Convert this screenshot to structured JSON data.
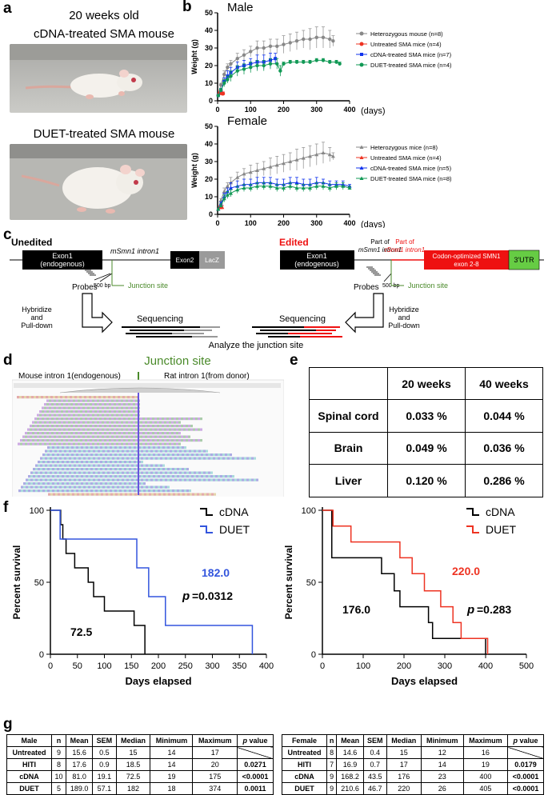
{
  "panel_letters": [
    "a",
    "b",
    "c",
    "d",
    "e",
    "f",
    "g"
  ],
  "panel_a": {
    "header": "20 weeks old",
    "photo1_caption": "cDNA-treated SMA mouse",
    "photo2_caption": "DUET-treated SMA mouse"
  },
  "axis_units": {
    "days": "(days)"
  },
  "panel_c": {
    "unedited_label": "Unedited",
    "edited_label": "Edited",
    "exon1": "Exon1",
    "endogenous": "(endogenous)",
    "mouse_intron": "mSmn1 intron1",
    "exon2": "Exon2",
    "lacz": "LacZ",
    "probes": "Probes",
    "bp500": "500 bp",
    "junction_site": "Junction site",
    "hybridize1": "Hybridize",
    "hybridize2": "and",
    "hybridize3": "Pull-down",
    "sequencing": "Sequencing",
    "analyze": "Analyze the junction site",
    "part_of": "Part of",
    "mouse_intron_part": "mSmn1 intron1",
    "rat_intron_part": "rSmn1 intron1",
    "codon_opt1": "Codon-optimized SMN1",
    "codon_opt2": "exon 2-8",
    "utr": "3'UTR"
  },
  "panel_d": {
    "junction_title": "Junction site",
    "mouse_label": "Mouse intron 1(endogenous)",
    "rat_label": "Rat intron 1(from donor)"
  },
  "panel_e": {
    "headers": [
      "",
      "20 weeks",
      "40 weeks"
    ],
    "rows": [
      [
        "Spinal cord",
        "0.033 %",
        "0.044 %"
      ],
      [
        "Brain",
        "0.049 %",
        "0.036 %"
      ],
      [
        "Liver",
        "0.120 %",
        "0.286 %"
      ]
    ]
  },
  "panel_g": {
    "male": {
      "headers": [
        "Male",
        "n",
        "Mean",
        "SEM",
        "Median",
        "Minimum",
        "Maximum",
        "p value"
      ],
      "rows": [
        [
          "Untreated",
          "9",
          "15.6",
          "0.5",
          "15",
          "14",
          "17",
          ""
        ],
        [
          "HITI",
          "8",
          "17.6",
          "0.9",
          "18.5",
          "14",
          "20",
          "0.0271"
        ],
        [
          "cDNA",
          "10",
          "81.0",
          "19.1",
          "72.5",
          "19",
          "175",
          "<0.0001"
        ],
        [
          "DUET",
          "5",
          "189.0",
          "57.1",
          "182",
          "18",
          "374",
          "0.0011"
        ]
      ]
    },
    "female": {
      "headers": [
        "Female",
        "n",
        "Mean",
        "SEM",
        "Median",
        "Minimum",
        "Maximum",
        "p value"
      ],
      "rows": [
        [
          "Untreated",
          "8",
          "14.6",
          "0.4",
          "15",
          "12",
          "16",
          ""
        ],
        [
          "HITI",
          "7",
          "16.9",
          "0.7",
          "17",
          "14",
          "19",
          "0.0179"
        ],
        [
          "cDNA",
          "9",
          "168.2",
          "43.5",
          "176",
          "23",
          "400",
          "<0.0001"
        ],
        [
          "DUET",
          "9",
          "210.6",
          "46.7",
          "220",
          "26",
          "405",
          "<0.0001"
        ]
      ]
    }
  },
  "colors": {
    "het": "#888888",
    "untreated": "#ee3322",
    "cdna": "#1133ee",
    "duet": "#119955",
    "surv_blue": "#3355dd",
    "surv_red": "#ee3322",
    "edited_red": "#ee1111",
    "green_ann": "#4a8a2a",
    "exon_red": "#ee1111",
    "utr_green": "#66cc44"
  },
  "chart_data": [
    {
      "type": "line",
      "title": "Male",
      "xlabel": "(days)",
      "ylabel": "Weight (g)",
      "xlim": [
        0,
        400
      ],
      "ylim": [
        0,
        50
      ],
      "xticks": [
        0,
        100,
        200,
        300,
        400
      ],
      "yticks": [
        0,
        10,
        20,
        30,
        40,
        50
      ],
      "legend_position": "right",
      "series": [
        {
          "name": "Heterozygous mouse (n=8)",
          "color_key": "het",
          "marker": "circle",
          "x": [
            2,
            10,
            20,
            30,
            40,
            60,
            80,
            100,
            120,
            140,
            160,
            180,
            200,
            220,
            240,
            260,
            280,
            300,
            320,
            340,
            350
          ],
          "y": [
            3,
            9,
            15,
            19,
            21,
            24,
            26,
            28,
            30,
            30,
            31,
            31,
            32,
            33,
            34,
            35,
            35,
            36,
            36,
            35,
            34
          ],
          "err": [
            0,
            1,
            2,
            2,
            2,
            3,
            3,
            3,
            4,
            4,
            4,
            4,
            5,
            5,
            5,
            5,
            6,
            6,
            6,
            5,
            3
          ]
        },
        {
          "name": "Untreated SMA mice (n=4)",
          "color_key": "untreated",
          "marker": "circle",
          "x": [
            2,
            5,
            8,
            11,
            14,
            17
          ],
          "y": [
            3,
            4,
            5,
            5,
            4,
            4
          ],
          "err": [
            0,
            0,
            1,
            1,
            1,
            1
          ]
        },
        {
          "name": "cDNA-treated SMA mice (n=7)",
          "color_key": "cdna",
          "marker": "square",
          "x": [
            2,
            10,
            20,
            30,
            40,
            60,
            80,
            100,
            120,
            140,
            160,
            175
          ],
          "y": [
            3,
            6,
            11,
            14,
            16,
            19,
            20,
            21,
            22,
            22,
            23,
            24
          ],
          "err": [
            0,
            1,
            2,
            3,
            3,
            3,
            3,
            3,
            4,
            4,
            4,
            3
          ]
        },
        {
          "name": "DUET-treated SMA mice (n=4)",
          "color_key": "duet",
          "marker": "circle",
          "x": [
            2,
            10,
            20,
            30,
            40,
            60,
            80,
            100,
            120,
            140,
            160,
            180,
            190,
            200,
            220,
            240,
            260,
            280,
            300,
            320,
            340,
            360,
            370
          ],
          "y": [
            3,
            6,
            10,
            12,
            14,
            17,
            18,
            19,
            20,
            20,
            21,
            21,
            17,
            21,
            22,
            22,
            22,
            22,
            23,
            23,
            22,
            22,
            21
          ],
          "err": [
            0,
            1,
            2,
            2,
            3,
            3,
            3,
            3,
            3,
            3,
            3,
            3,
            3,
            1,
            1,
            1,
            1,
            1,
            1,
            1,
            1,
            1,
            1
          ]
        }
      ]
    },
    {
      "type": "line",
      "title": "Female",
      "xlabel": "(days)",
      "ylabel": "Weight (g)",
      "xlim": [
        0,
        400
      ],
      "ylim": [
        0,
        50
      ],
      "xticks": [
        0,
        100,
        200,
        300,
        400
      ],
      "yticks": [
        0,
        10,
        20,
        30,
        40,
        50
      ],
      "legend_position": "right",
      "series": [
        {
          "name": "Heterozygous mice (n=8)",
          "color_key": "het",
          "marker": "triangle",
          "x": [
            2,
            10,
            20,
            30,
            40,
            60,
            80,
            100,
            120,
            140,
            160,
            180,
            200,
            220,
            240,
            260,
            280,
            300,
            320,
            340,
            350
          ],
          "y": [
            3,
            8,
            13,
            16,
            18,
            21,
            23,
            24,
            25,
            26,
            27,
            28,
            29,
            30,
            31,
            32,
            33,
            34,
            35,
            34,
            33
          ],
          "err": [
            0,
            1,
            2,
            2,
            3,
            3,
            3,
            4,
            4,
            4,
            5,
            5,
            5,
            5,
            6,
            6,
            6,
            6,
            6,
            4,
            2
          ]
        },
        {
          "name": "Untreated SMA mice (n=4)",
          "color_key": "untreated",
          "marker": "triangle",
          "x": [
            2,
            5,
            8,
            11,
            14
          ],
          "y": [
            3,
            4,
            4,
            5,
            4
          ],
          "err": [
            0,
            0,
            1,
            1,
            1
          ]
        },
        {
          "name": "cDNA-treated SMA mice (n=5)",
          "color_key": "cdna",
          "marker": "triangle",
          "x": [
            2,
            10,
            20,
            30,
            40,
            60,
            80,
            100,
            120,
            140,
            160,
            180,
            200,
            220,
            240,
            260,
            280,
            300,
            320,
            340,
            360,
            380,
            400
          ],
          "y": [
            3,
            6,
            10,
            13,
            15,
            16,
            17,
            17,
            18,
            18,
            18,
            17,
            17,
            18,
            18,
            17,
            17,
            18,
            18,
            17,
            17,
            17,
            16
          ],
          "err": [
            0,
            1,
            2,
            2,
            3,
            3,
            3,
            3,
            3,
            3,
            3,
            3,
            3,
            3,
            3,
            3,
            3,
            3,
            2,
            2,
            2,
            2,
            1
          ]
        },
        {
          "name": "DUET-treated SMA mice (n=8)",
          "color_key": "duet",
          "marker": "triangle",
          "x": [
            2,
            10,
            20,
            30,
            40,
            60,
            80,
            100,
            120,
            140,
            160,
            180,
            200,
            220,
            240,
            260,
            280,
            300,
            320,
            340,
            360,
            380,
            400
          ],
          "y": [
            3,
            5,
            9,
            11,
            12,
            14,
            15,
            15,
            16,
            16,
            16,
            15,
            15,
            16,
            15,
            15,
            15,
            16,
            16,
            15,
            16,
            16,
            15
          ],
          "err": [
            0,
            1,
            2,
            2,
            2,
            2,
            2,
            2,
            2,
            2,
            2,
            2,
            2,
            2,
            2,
            2,
            2,
            2,
            2,
            2,
            2,
            2,
            1
          ]
        }
      ]
    },
    {
      "type": "line",
      "title": "Male",
      "xlabel": "Days elapsed",
      "ylabel": "Percent survival",
      "xlim": [
        0,
        400
      ],
      "ylim": [
        0,
        100
      ],
      "xticks": [
        0,
        50,
        100,
        150,
        200,
        250,
        300,
        350,
        400
      ],
      "yticks": [
        0,
        50,
        100
      ],
      "step": true,
      "series": [
        {
          "name": "cDNA",
          "color_key": "black",
          "x": [
            0,
            19,
            23,
            29,
            45,
            70,
            80,
            100,
            155,
            175
          ],
          "y": [
            100,
            90,
            80,
            70,
            60,
            50,
            40,
            30,
            20,
            0
          ]
        },
        {
          "name": "DUET",
          "color_key": "surv_blue",
          "x": [
            0,
            18,
            160,
            182,
            213,
            374
          ],
          "y": [
            100,
            80,
            60,
            40,
            20,
            0
          ]
        }
      ],
      "annotations": {
        "cdna_median": "72.5",
        "duet_median": "182.0",
        "p_label": "p",
        "p_value": "=0.0312"
      }
    },
    {
      "type": "line",
      "title": "Female",
      "xlabel": "Days elapsed",
      "ylabel": "Percent survival",
      "xlim": [
        0,
        500
      ],
      "ylim": [
        0,
        100
      ],
      "xticks": [
        0,
        100,
        200,
        300,
        400,
        500
      ],
      "yticks": [
        0,
        50,
        100
      ],
      "step": true,
      "series": [
        {
          "name": "cDNA",
          "color_key": "black",
          "x": [
            0,
            23,
            145,
            176,
            190,
            260,
            270,
            400
          ],
          "y": [
            100,
            67,
            56,
            44,
            33,
            22,
            11,
            0
          ]
        },
        {
          "name": "DUET",
          "color_key": "surv_red",
          "x": [
            0,
            26,
            70,
            190,
            220,
            250,
            290,
            320,
            340,
            405
          ],
          "y": [
            100,
            89,
            78,
            67,
            56,
            44,
            33,
            22,
            11,
            0
          ]
        }
      ],
      "annotations": {
        "cdna_median": "176.0",
        "duet_median": "220.0",
        "p_label": "p",
        "p_value": "=0.283"
      }
    }
  ]
}
